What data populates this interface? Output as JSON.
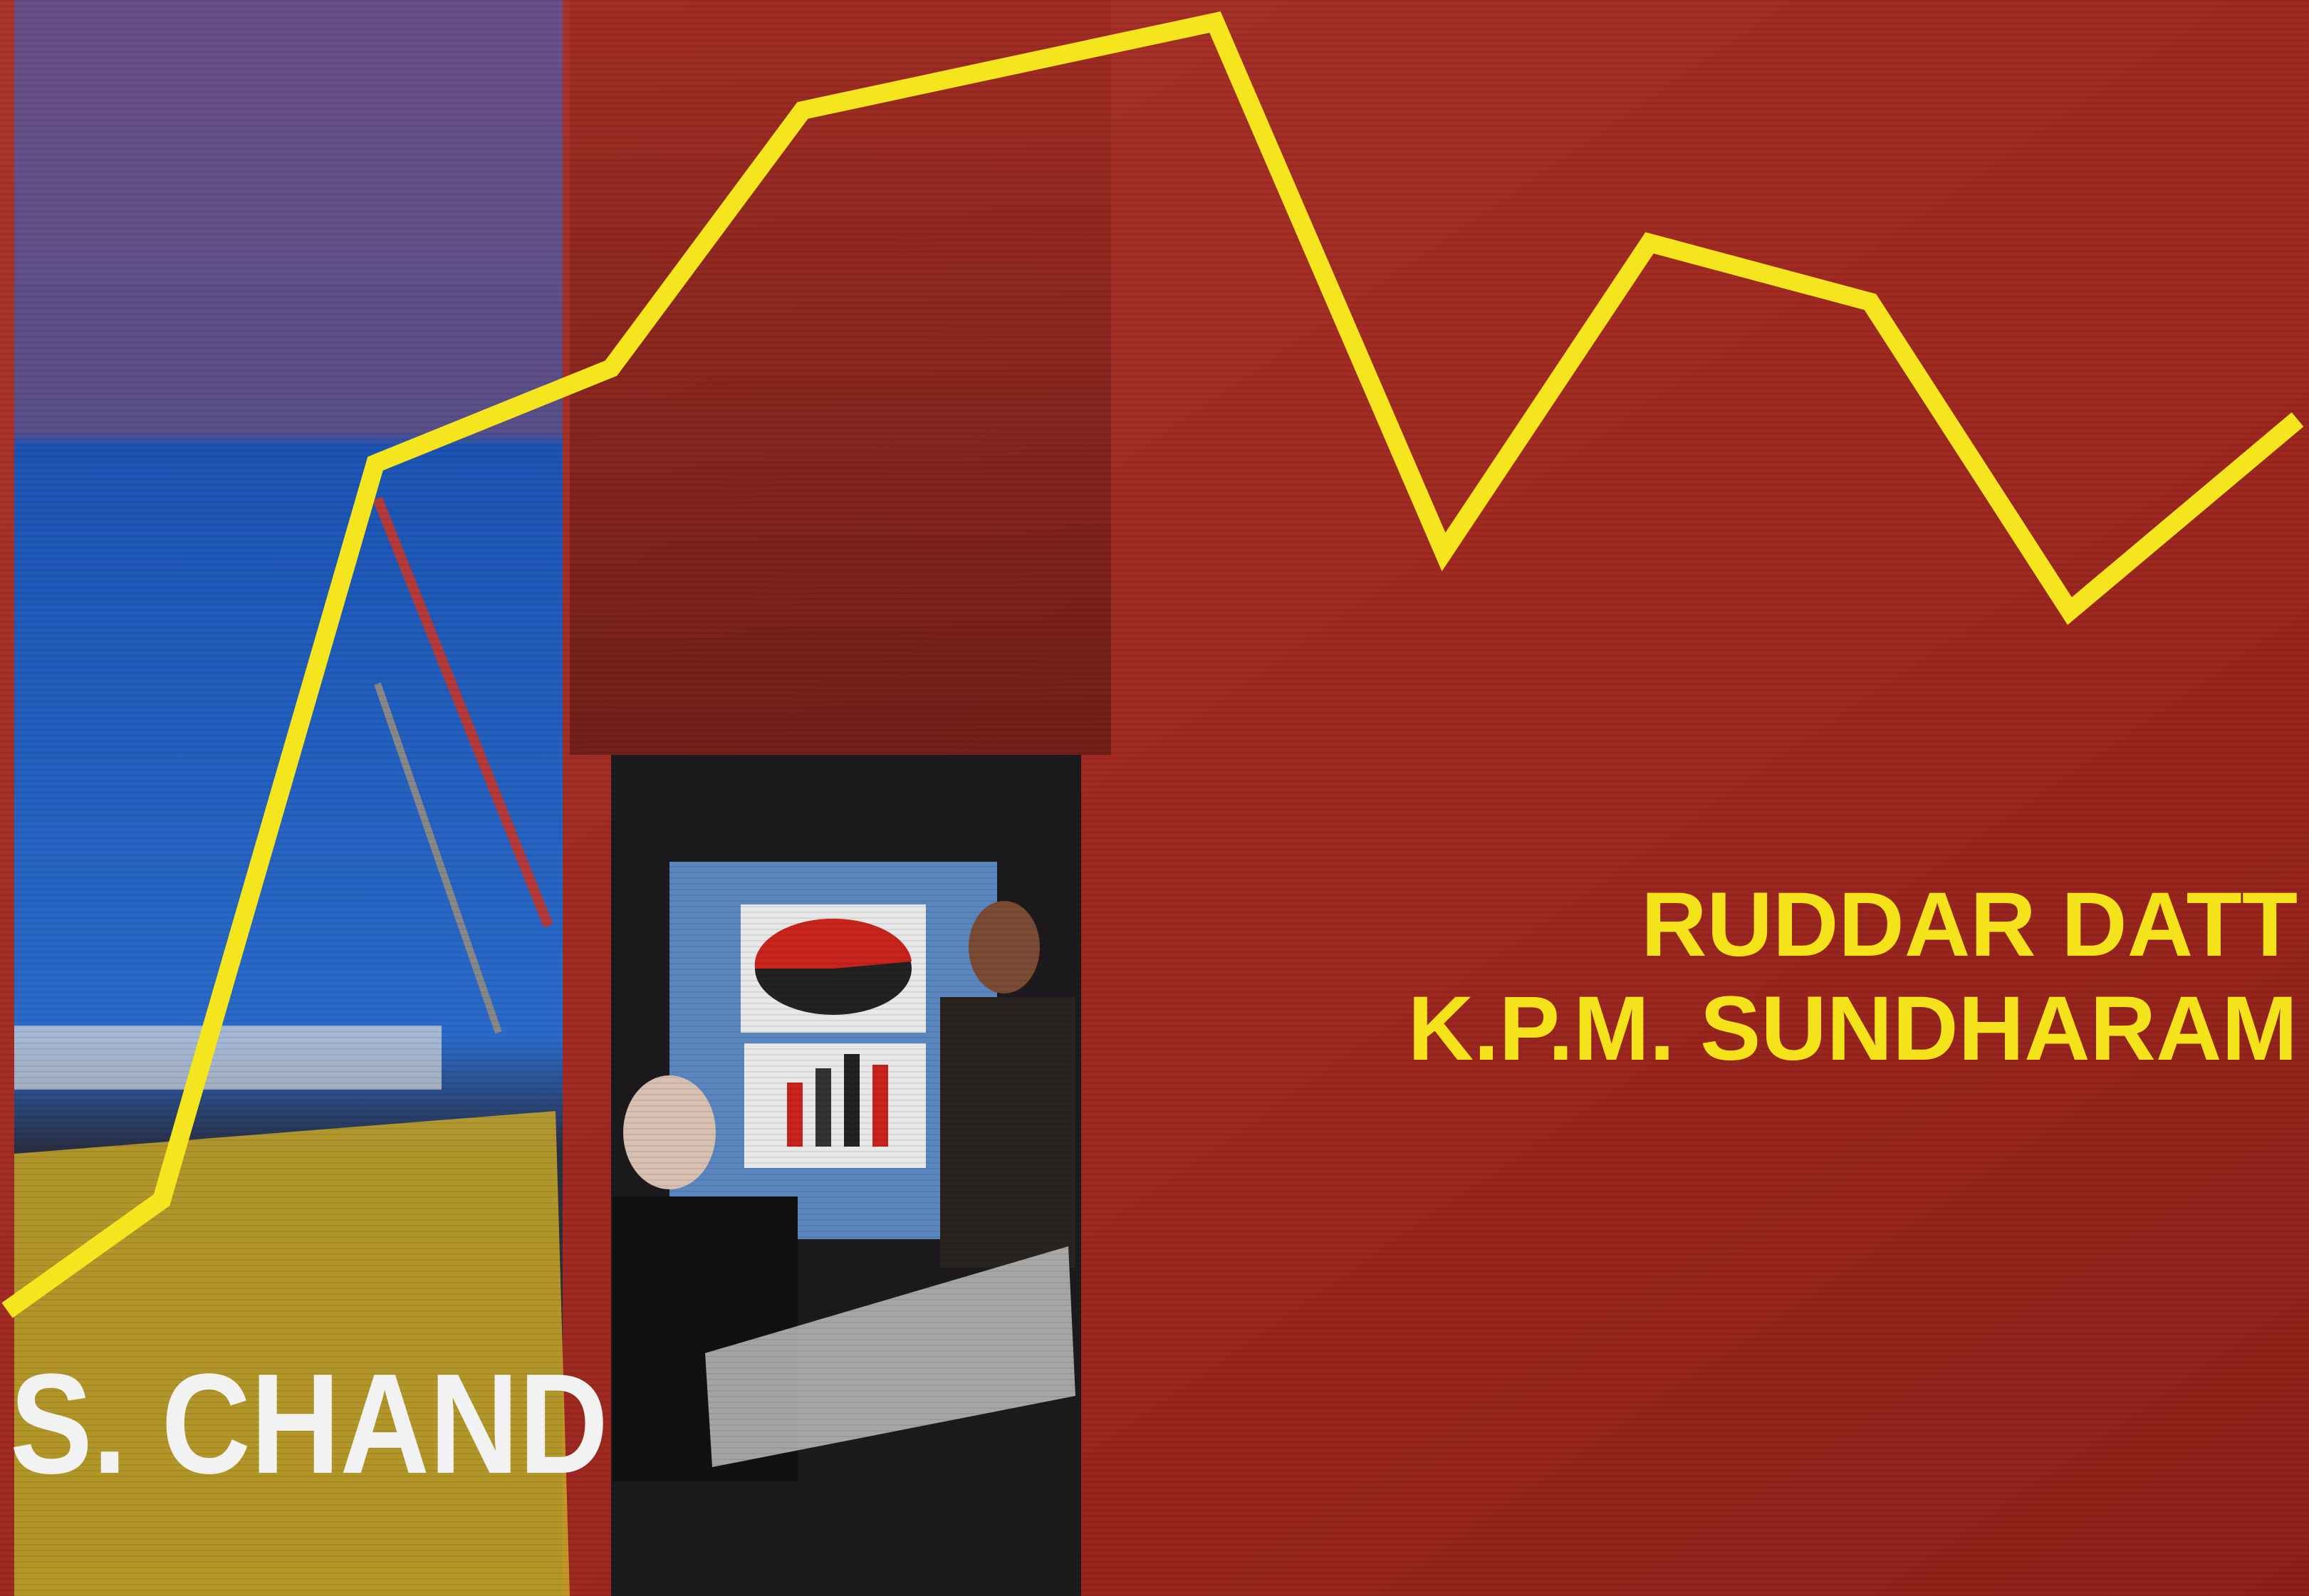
{
  "cover": {
    "authors": [
      "RUDDAR DATT",
      "K.P.M. SUNDHARAM"
    ],
    "publisher": "S. CHAND"
  }
}
